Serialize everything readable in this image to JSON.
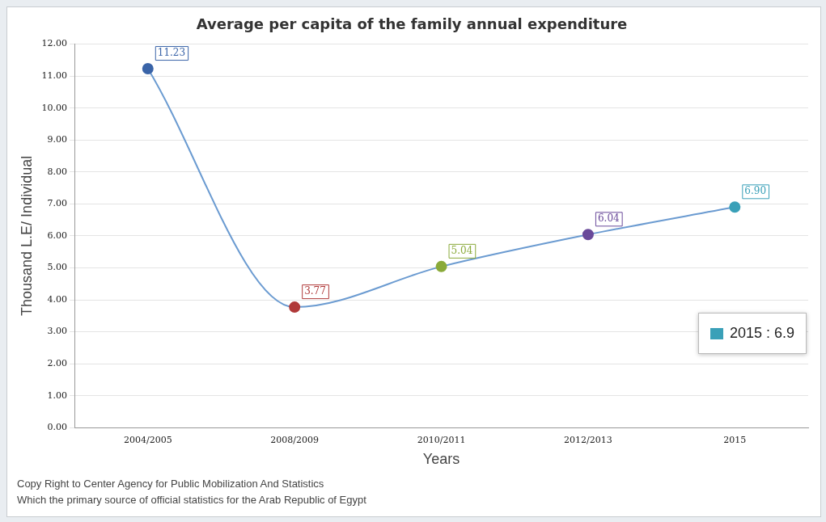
{
  "chart_data": {
    "type": "line",
    "title": "Average per capita of the family annual expenditure",
    "xlabel": "Years",
    "ylabel": "Thousand L.E/ Individual",
    "categories": [
      "2004/2005",
      "2008/2009",
      "2010/2011",
      "2012/2013",
      "2015"
    ],
    "series": [
      {
        "color": "#6b9bd1",
        "colors": [
          "#3a64a8",
          "#b03a3a",
          "#8aaa3a",
          "#6a4a9a",
          "#3aa0b8"
        ],
        "values": [
          11.23,
          3.77,
          5.04,
          6.04,
          6.9
        ],
        "value_labels": [
          "11.23",
          "3.77",
          "5.04",
          "6.04",
          "6.90"
        ]
      }
    ],
    "ylim": [
      0,
      12
    ],
    "yticks": [
      {
        "value": 0,
        "label": "0.00"
      },
      {
        "value": 1,
        "label": "1.00"
      },
      {
        "value": 2,
        "label": "2.00"
      },
      {
        "value": 3,
        "label": "3.00"
      },
      {
        "value": 4,
        "label": "4.00"
      },
      {
        "value": 5,
        "label": "5.00"
      },
      {
        "value": 6,
        "label": "6.00"
      },
      {
        "value": 7,
        "label": "7.00"
      },
      {
        "value": 8,
        "label": "8.00"
      },
      {
        "value": 9,
        "label": "9.00"
      },
      {
        "value": 10,
        "label": "10.00"
      },
      {
        "value": 11,
        "label": "11.00"
      },
      {
        "value": 12,
        "label": "12.00"
      }
    ],
    "grid": "y",
    "legend": false,
    "marker": "circle",
    "line_style": "solid",
    "annotations": [
      "2015 : 6.9",
      "Copy Right to Center Agency for Public Mobilization And Statistics",
      "Which the primary source of official statistics for the Arab Republic of Egypt"
    ]
  }
}
